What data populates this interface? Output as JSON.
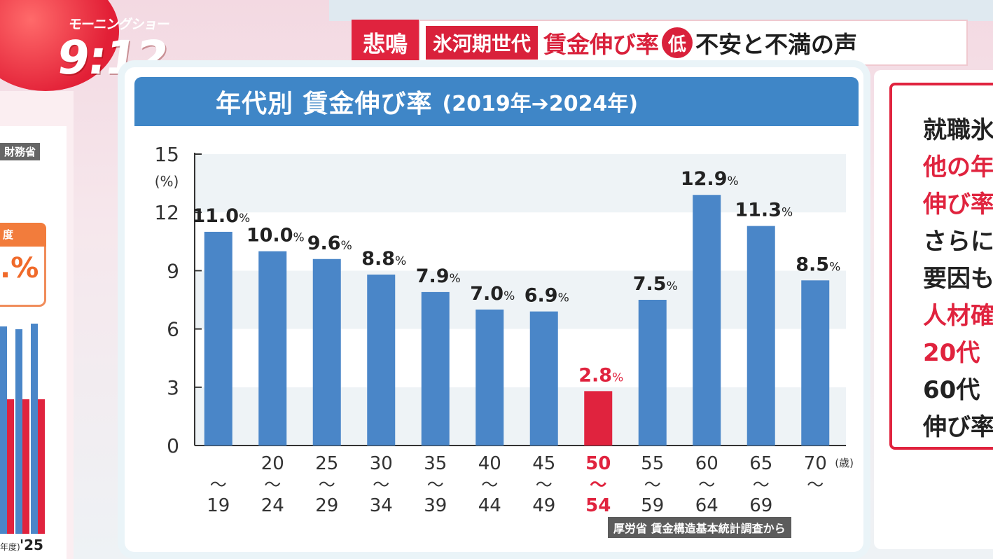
{
  "broadcast": {
    "show_name": "モーニングショー",
    "time": "9:12"
  },
  "headline": {
    "tag": "悲鳴",
    "topic": "氷河期世代",
    "part1": "賃金伸び率",
    "circle": "低",
    "part2": "不安と不満の声"
  },
  "left_panel": {
    "label": "財務省",
    "callout_head": "度",
    "callout_value": ".%",
    "year_small": "年度)",
    "year": "'25"
  },
  "right_panel": {
    "lines": [
      {
        "text": "就職氷",
        "color": "#222222"
      },
      {
        "text": "他の年",
        "color": "#e0233e"
      },
      {
        "text": "伸び率",
        "color": "#e0233e"
      },
      {
        "text": "さらに",
        "color": "#222222"
      },
      {
        "text": "要因も",
        "color": "#222222"
      },
      {
        "text": "人材確",
        "color": "#e0233e"
      },
      {
        "text": "20代",
        "color": "#e0233e"
      },
      {
        "text": "60代",
        "color": "#222222"
      },
      {
        "text": "伸び率",
        "color": "#222222"
      }
    ]
  },
  "card": {
    "title": "年代別 賃金伸び率",
    "subtitle": "(2019年➔2024年)",
    "source": "厚労省 賃金構造基本統計調査から"
  },
  "chart_data": {
    "type": "bar",
    "title": "年代別 賃金伸び率",
    "subtitle": "(2019年➔2024年)",
    "ylabel": "(%)",
    "xunit": "(歳)",
    "ylim": [
      0,
      15
    ],
    "yticks": [
      0,
      3,
      6,
      9,
      12,
      15
    ],
    "grid": "horizontal bands",
    "categories": [
      {
        "top": "",
        "bottom": "19"
      },
      {
        "top": "20",
        "bottom": "24"
      },
      {
        "top": "25",
        "bottom": "29"
      },
      {
        "top": "30",
        "bottom": "34"
      },
      {
        "top": "35",
        "bottom": "39"
      },
      {
        "top": "40",
        "bottom": "44"
      },
      {
        "top": "45",
        "bottom": "49"
      },
      {
        "top": "50",
        "bottom": "54"
      },
      {
        "top": "55",
        "bottom": "59"
      },
      {
        "top": "60",
        "bottom": "64"
      },
      {
        "top": "65",
        "bottom": "69"
      },
      {
        "top": "70",
        "bottom": ""
      }
    ],
    "values": [
      11.0,
      10.0,
      9.6,
      8.8,
      7.9,
      7.0,
      6.9,
      2.8,
      7.5,
      12.9,
      11.3,
      8.5
    ],
    "value_labels": [
      "11.0",
      "10.0",
      "9.6",
      "8.8",
      "7.9",
      "7.0",
      "6.9",
      "2.8",
      "7.5",
      "12.9",
      "11.3",
      "8.5"
    ],
    "highlight_index": 7,
    "colors": {
      "bar": "#4a86c8",
      "highlight": "#e0233e",
      "band": "#eef3f6",
      "text": "#222222"
    }
  }
}
